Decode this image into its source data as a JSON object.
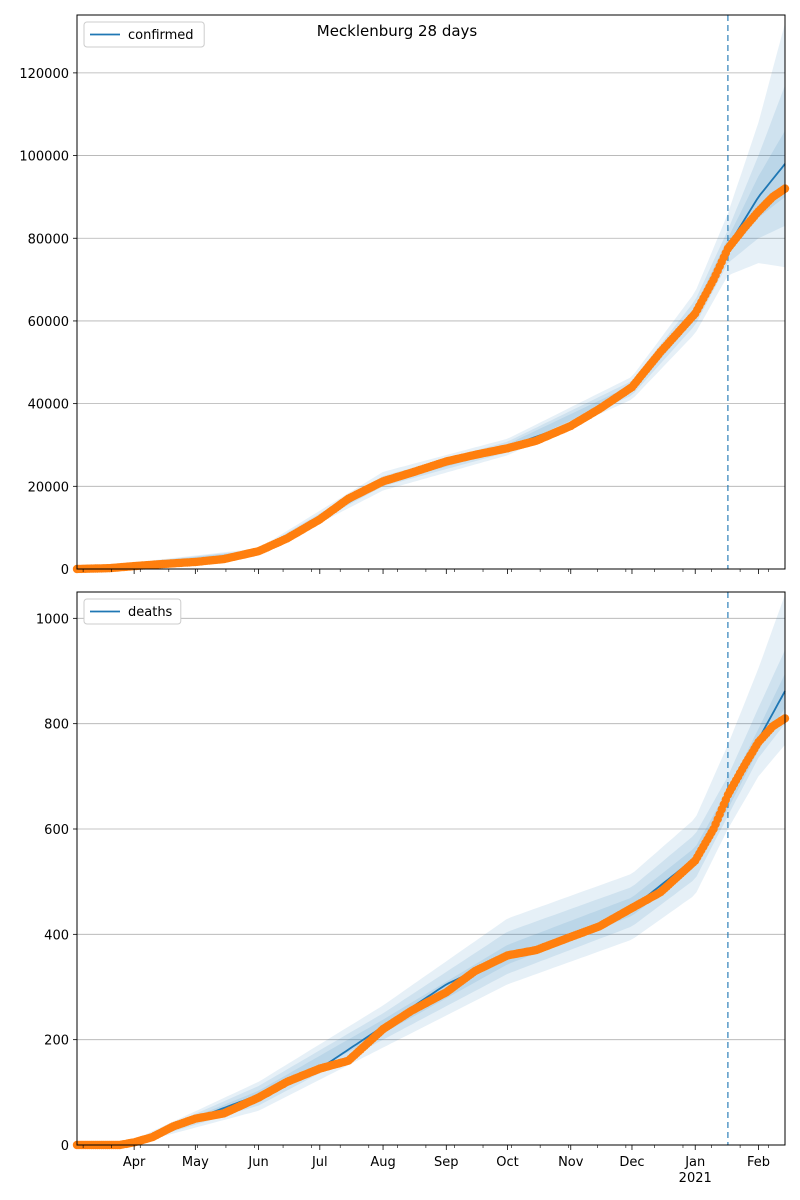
{
  "figure_title": "Mecklenburg 28 days",
  "colors": {
    "fit": "#1f77b4",
    "band": "#1f77b4",
    "observed": "#ff7f0e",
    "grid": "#b0b0b0",
    "forecast_line": "#1f77b4"
  },
  "chart_data": [
    {
      "type": "line",
      "title": "",
      "legend": {
        "placement": "top-left",
        "label": "confirmed"
      },
      "grid": "y",
      "x_range": [
        "2020-03-04",
        "2021-02-14"
      ],
      "ylim": [
        0,
        134000
      ],
      "yticks": [
        0,
        20000,
        40000,
        60000,
        80000,
        100000,
        120000
      ],
      "forecast_start": "2021-01-17",
      "fit": {
        "name": "confirmed",
        "x": [
          "2020-03-04",
          "2020-04-01",
          "2020-05-01",
          "2020-06-01",
          "2020-07-01",
          "2020-08-01",
          "2020-09-01",
          "2020-10-01",
          "2020-11-01",
          "2020-12-01",
          "2021-01-01",
          "2021-01-17",
          "2021-02-01",
          "2021-02-14"
        ],
        "y": [
          0,
          500,
          1800,
          4300,
          12000,
          21000,
          26300,
          29500,
          35000,
          43500,
          62000,
          78000,
          90000,
          98000
        ]
      },
      "bands": [
        {
          "x": [
            "2020-03-04",
            "2020-06-01",
            "2020-08-01",
            "2020-10-01",
            "2020-12-01",
            "2021-01-01",
            "2021-01-17",
            "2021-02-01",
            "2021-02-14"
          ],
          "low": [
            0,
            3500,
            19000,
            27500,
            41000,
            57000,
            71000,
            74000,
            73000
          ],
          "high": [
            0,
            5000,
            23500,
            31500,
            46500,
            67000,
            86000,
            108000,
            132000
          ]
        },
        {
          "x": [
            "2020-03-04",
            "2020-06-01",
            "2020-08-01",
            "2020-10-01",
            "2020-12-01",
            "2021-01-01",
            "2021-01-17",
            "2021-02-01",
            "2021-02-14"
          ],
          "low": [
            0,
            3800,
            20000,
            28200,
            42000,
            59000,
            74000,
            80000,
            83000
          ],
          "high": [
            0,
            4700,
            22500,
            30800,
            45500,
            65000,
            82000,
            100000,
            117000
          ]
        },
        {
          "x": [
            "2020-03-04",
            "2020-06-01",
            "2020-08-01",
            "2020-10-01",
            "2020-12-01",
            "2021-01-01",
            "2021-01-17",
            "2021-02-01",
            "2021-02-14"
          ],
          "low": [
            0,
            4000,
            20600,
            28800,
            42800,
            60500,
            76000,
            85000,
            90000
          ],
          "high": [
            0,
            4500,
            21800,
            30200,
            44500,
            63500,
            80000,
            95000,
            106000
          ]
        }
      ],
      "observed": {
        "name": "observed",
        "x": [
          "2020-03-04",
          "2020-03-20",
          "2020-04-01",
          "2020-04-15",
          "2020-05-01",
          "2020-05-15",
          "2020-06-01",
          "2020-06-15",
          "2020-07-01",
          "2020-07-15",
          "2020-08-01",
          "2020-08-15",
          "2020-09-01",
          "2020-09-15",
          "2020-10-01",
          "2020-10-15",
          "2020-11-01",
          "2020-11-15",
          "2020-12-01",
          "2020-12-15",
          "2021-01-01",
          "2021-01-10",
          "2021-01-17",
          "2021-01-25",
          "2021-02-01",
          "2021-02-08",
          "2021-02-14"
        ],
        "y": [
          0,
          200,
          700,
          1200,
          1700,
          2400,
          4300,
          7400,
          12000,
          17000,
          21200,
          23300,
          26000,
          27600,
          29200,
          31000,
          34600,
          38700,
          44000,
          52500,
          61800,
          70000,
          77500,
          82500,
          86500,
          90000,
          92000
        ]
      }
    },
    {
      "type": "line",
      "title": "",
      "legend": {
        "placement": "top-left",
        "label": "deaths"
      },
      "grid": "y",
      "x_range": [
        "2020-03-04",
        "2021-02-14"
      ],
      "ylim": [
        0,
        1050
      ],
      "yticks": [
        0,
        200,
        400,
        600,
        800,
        1000
      ],
      "forecast_start": "2021-01-17",
      "fit": {
        "name": "deaths",
        "x": [
          "2020-03-04",
          "2020-04-01",
          "2020-05-01",
          "2020-06-01",
          "2020-07-01",
          "2020-08-01",
          "2020-09-01",
          "2020-10-01",
          "2020-11-01",
          "2020-12-01",
          "2021-01-01",
          "2021-01-17",
          "2021-02-01",
          "2021-02-14"
        ],
        "y": [
          0,
          5,
          50,
          95,
          145,
          225,
          305,
          360,
          395,
          450,
          545,
          655,
          770,
          862
        ]
      },
      "bands": [
        {
          "x": [
            "2020-03-04",
            "2020-04-01",
            "2020-06-01",
            "2020-08-01",
            "2020-10-01",
            "2020-12-01",
            "2021-01-01",
            "2021-01-17",
            "2021-02-01",
            "2021-02-14"
          ],
          "low": [
            0,
            2,
            65,
            185,
            305,
            390,
            475,
            600,
            700,
            760
          ],
          "high": [
            0,
            10,
            120,
            265,
            430,
            515,
            620,
            760,
            905,
            1045
          ]
        },
        {
          "x": [
            "2020-03-04",
            "2020-04-01",
            "2020-06-01",
            "2020-08-01",
            "2020-10-01",
            "2020-12-01",
            "2021-01-01",
            "2021-01-17",
            "2021-02-01",
            "2021-02-14"
          ],
          "low": [
            0,
            3,
            75,
            200,
            325,
            415,
            505,
            625,
            735,
            800
          ],
          "high": [
            0,
            8,
            112,
            250,
            405,
            490,
            590,
            700,
            830,
            940
          ]
        },
        {
          "x": [
            "2020-03-04",
            "2020-04-01",
            "2020-06-01",
            "2020-08-01",
            "2020-10-01",
            "2020-12-01",
            "2021-01-01",
            "2021-01-17",
            "2021-02-01",
            "2021-02-14"
          ],
          "low": [
            0,
            4,
            85,
            212,
            343,
            435,
            528,
            638,
            750,
            830
          ],
          "high": [
            0,
            7,
            103,
            238,
            380,
            470,
            565,
            675,
            790,
            895
          ]
        }
      ],
      "observed": {
        "name": "observed",
        "x": [
          "2020-03-04",
          "2020-03-25",
          "2020-04-01",
          "2020-04-10",
          "2020-04-20",
          "2020-05-01",
          "2020-05-15",
          "2020-06-01",
          "2020-06-15",
          "2020-07-01",
          "2020-07-15",
          "2020-08-01",
          "2020-08-15",
          "2020-09-01",
          "2020-09-15",
          "2020-10-01",
          "2020-10-15",
          "2020-11-01",
          "2020-11-15",
          "2020-12-01",
          "2020-12-15",
          "2021-01-01",
          "2021-01-10",
          "2021-01-17",
          "2021-01-25",
          "2021-02-01",
          "2021-02-08",
          "2021-02-14"
        ],
        "y": [
          0,
          0,
          5,
          15,
          35,
          50,
          60,
          90,
          120,
          145,
          160,
          220,
          255,
          290,
          330,
          360,
          370,
          395,
          415,
          450,
          480,
          540,
          600,
          665,
          720,
          765,
          795,
          810
        ]
      }
    }
  ],
  "x_ticks": {
    "months": [
      {
        "date": "2020-04-01",
        "label": "Apr"
      },
      {
        "date": "2020-05-01",
        "label": "May"
      },
      {
        "date": "2020-06-01",
        "label": "Jun"
      },
      {
        "date": "2020-07-01",
        "label": "Jul"
      },
      {
        "date": "2020-08-01",
        "label": "Aug"
      },
      {
        "date": "2020-09-01",
        "label": "Sep"
      },
      {
        "date": "2020-10-01",
        "label": "Oct"
      },
      {
        "date": "2020-11-01",
        "label": "Nov"
      },
      {
        "date": "2020-12-01",
        "label": "Dec"
      },
      {
        "date": "2021-01-01",
        "label": "Jan"
      },
      {
        "date": "2021-02-01",
        "label": "Feb"
      }
    ],
    "year_label": "2021"
  }
}
